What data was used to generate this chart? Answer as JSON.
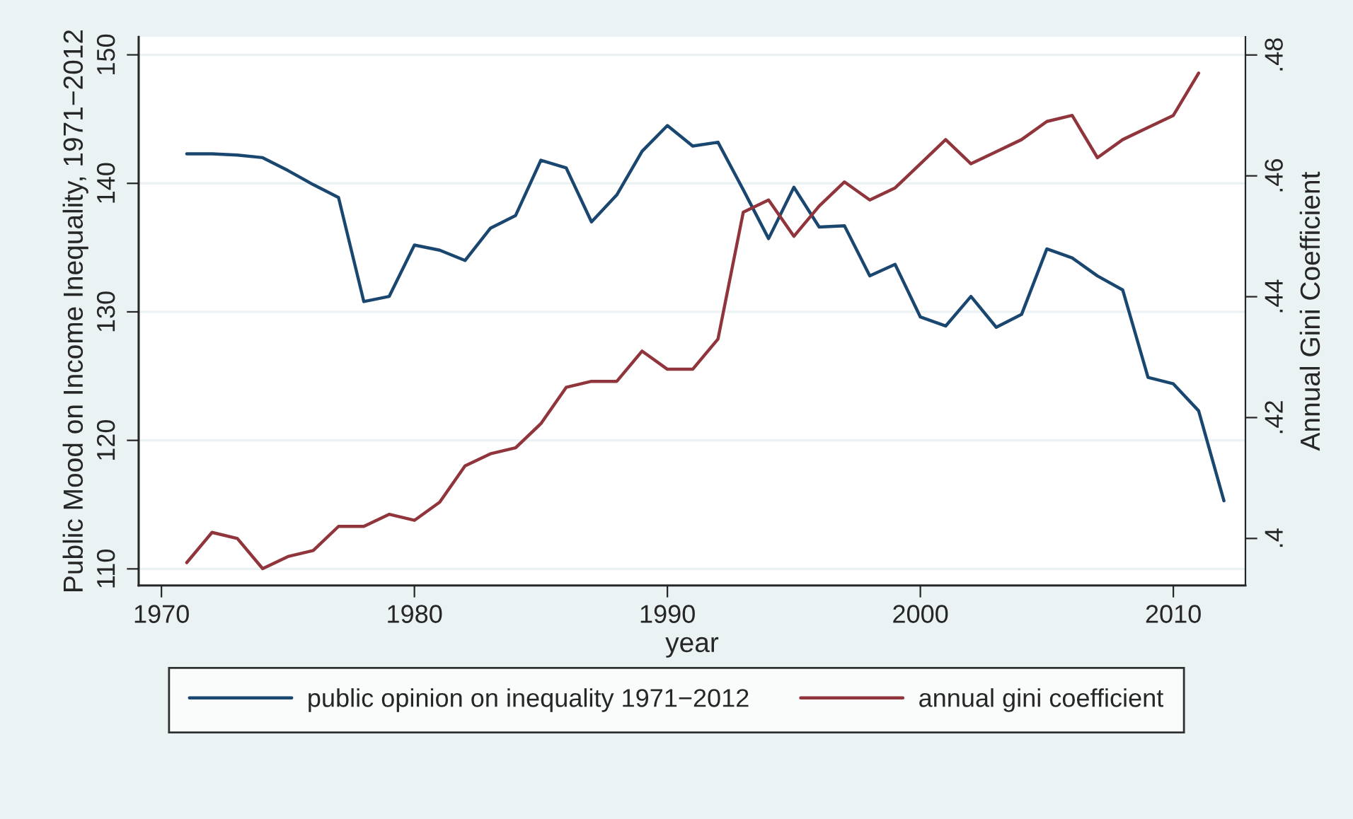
{
  "chart_data": {
    "type": "line",
    "xlabel": "year",
    "ylabel": "Public Mood on Income Inequality, 1971−2012",
    "y2label": "Annual Gini Coefficient",
    "x": [
      1971,
      1972,
      1973,
      1974,
      1975,
      1976,
      1977,
      1978,
      1979,
      1980,
      1981,
      1982,
      1983,
      1984,
      1985,
      1986,
      1987,
      1988,
      1989,
      1990,
      1991,
      1992,
      1993,
      1994,
      1995,
      1996,
      1997,
      1998,
      1999,
      2000,
      2001,
      2002,
      2003,
      2004,
      2005,
      2006,
      2007,
      2008,
      2009,
      2010,
      2011,
      2012
    ],
    "series": [
      {
        "name": "public opinion on inequality 1971−2012",
        "color": "#1a476f",
        "values": [
          142.3,
          142.3,
          142.2,
          142.0,
          141.0,
          139.9,
          138.9,
          130.8,
          131.2,
          135.2,
          134.8,
          134.0,
          136.5,
          137.5,
          141.8,
          141.2,
          137.0,
          139.1,
          142.5,
          144.5,
          142.9,
          143.2,
          139.5,
          135.7,
          139.7,
          136.6,
          136.7,
          132.8,
          133.7,
          129.6,
          128.9,
          131.2,
          128.8,
          129.8,
          134.9,
          134.2,
          132.8,
          131.7,
          124.9,
          124.4,
          122.3,
          115.3
        ]
      },
      {
        "name": "annual gini coefficient",
        "color": "#90353b",
        "axis": "y2",
        "values": [
          0.396,
          0.401,
          0.4,
          0.395,
          0.397,
          0.398,
          0.402,
          0.402,
          0.404,
          0.403,
          0.406,
          0.412,
          0.414,
          0.415,
          0.419,
          0.425,
          0.426,
          0.426,
          0.431,
          0.428,
          0.428,
          0.433,
          0.454,
          0.456,
          0.45,
          0.455,
          0.459,
          0.456,
          0.458,
          0.462,
          0.466,
          0.462,
          0.464,
          0.466,
          0.469,
          0.47,
          0.463,
          0.466,
          0.468,
          0.47,
          0.477,
          null
        ]
      }
    ],
    "xlim": [
      1969.1,
      2012.85
    ],
    "xticks": [
      1970,
      1980,
      1990,
      2000,
      2010
    ],
    "ylim": [
      108.7,
      151.4
    ],
    "yticks": [
      110,
      120,
      130,
      140,
      150
    ],
    "y2lim": [
      0.3922,
      0.483
    ],
    "y2ticks": [
      {
        "value": 0.4,
        "label": ".4"
      },
      {
        "value": 0.42,
        "label": ".42"
      },
      {
        "value": 0.44,
        "label": ".44"
      },
      {
        "value": 0.46,
        "label": ".46"
      },
      {
        "value": 0.48,
        "label": ".48"
      }
    ],
    "grid": "y",
    "legend": "bottom"
  }
}
